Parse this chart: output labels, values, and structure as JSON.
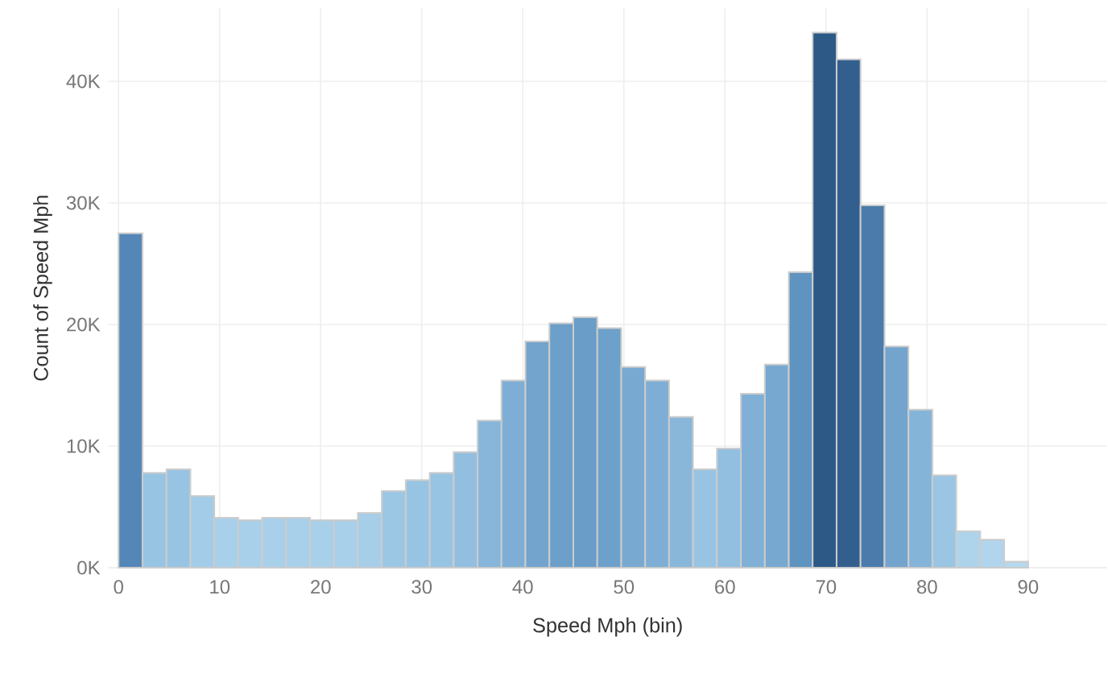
{
  "chart_data": {
    "type": "histogram",
    "xlabel": "Speed Mph (bin)",
    "ylabel": "Count of Speed Mph",
    "bins": [
      0,
      2.37,
      4.74,
      7.11,
      9.47,
      11.84,
      14.21,
      16.58,
      18.95,
      21.32,
      23.68,
      26.05,
      28.42,
      30.79,
      33.16,
      35.53,
      37.89,
      40.26,
      42.63,
      45,
      47.37,
      49.74,
      52.11,
      54.47,
      56.84,
      59.21,
      61.58,
      63.95,
      66.32,
      68.68,
      71.05,
      73.42,
      75.79,
      78.16,
      80.53,
      82.89,
      85.26,
      87.63,
      90
    ],
    "values": [
      27.5,
      7.8,
      8.1,
      5.9,
      4.1,
      3.9,
      4.1,
      4.1,
      3.9,
      3.9,
      4.5,
      6.3,
      7.2,
      7.8,
      9.5,
      12.1,
      15.4,
      18.6,
      20.1,
      20.6,
      19.7,
      16.5,
      15.4,
      12.4,
      8.1,
      9.8,
      14.3,
      16.7,
      24.3,
      44,
      41.8,
      29.8,
      18.2,
      13.0,
      7.6,
      3.0,
      2.3,
      0.5
    ],
    "colors": [
      "#5487b8",
      "#98c4e3",
      "#98c4e3",
      "#a3cce8",
      "#a9d0ea",
      "#a9d0ea",
      "#a9d0ea",
      "#a9d0ea",
      "#a9d0ea",
      "#a9d0ea",
      "#a6cee9",
      "#9cc7e4",
      "#98c4e3",
      "#98c4e3",
      "#92bfe0",
      "#87b6da",
      "#7eaed5",
      "#72a4cd",
      "#6c9fc9",
      "#6a9dc8",
      "#6da0ca",
      "#78a9d1",
      "#7eaed5",
      "#88b7da",
      "#98c4e3",
      "#92bfe0",
      "#80b0d6",
      "#77a8d0",
      "#5f94c0",
      "#2c5986",
      "#325f8e",
      "#4a7bab",
      "#72a4cd",
      "#85b4d9",
      "#9ac5e3",
      "#aed4ec",
      "#b0d5ed",
      "#b4d8ee"
    ],
    "xlim": [
      -1,
      97.8
    ],
    "ylim": [
      0,
      46
    ],
    "xticks": [
      0,
      10,
      20,
      30,
      40,
      50,
      60,
      70,
      80,
      90
    ],
    "yticks": [
      {
        "value": 0,
        "label": "0K"
      },
      {
        "value": 10,
        "label": "10K"
      },
      {
        "value": 20,
        "label": "20K"
      },
      {
        "value": 30,
        "label": "30K"
      },
      {
        "value": 40,
        "label": "40K"
      }
    ],
    "grid": true
  }
}
